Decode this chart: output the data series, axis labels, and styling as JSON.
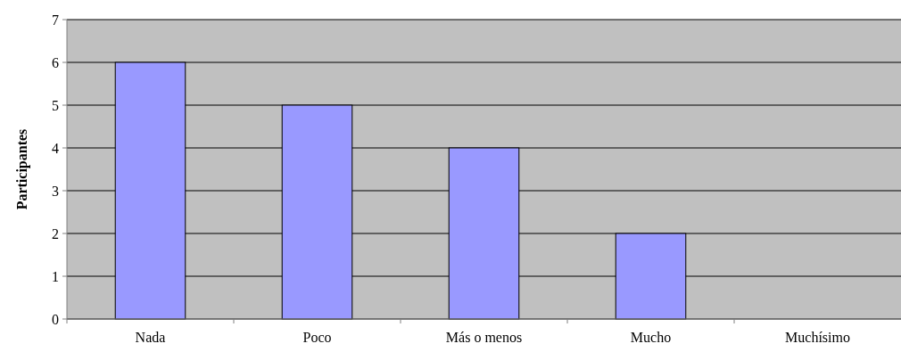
{
  "chart_data": {
    "type": "bar",
    "ylabel": "Participantes",
    "categories": [
      "Nada",
      "Poco",
      "Más o menos",
      "Mucho",
      "Muchísimo"
    ],
    "values": [
      6,
      5,
      4,
      2,
      0
    ],
    "color": "#9999ff",
    "ylim": [
      0,
      7
    ],
    "yticks": [
      0,
      1,
      2,
      3,
      4,
      5,
      6,
      7
    ],
    "grid": "y"
  }
}
